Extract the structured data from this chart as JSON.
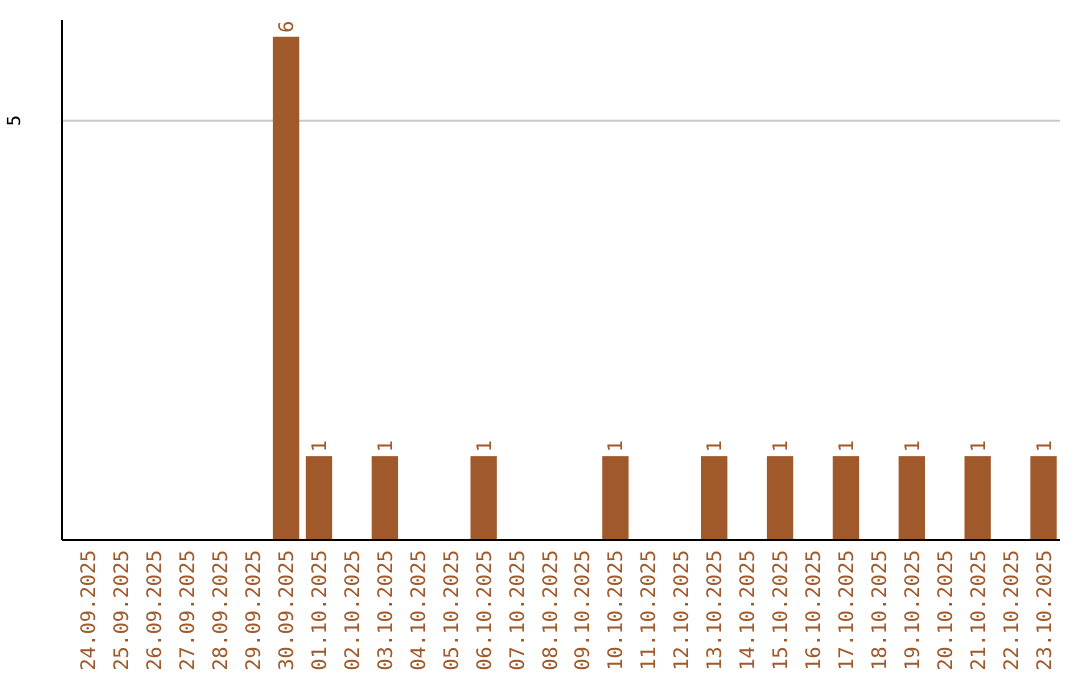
{
  "chart_data": {
    "type": "bar",
    "categories": [
      "24.09.2025",
      "25.09.2025",
      "26.09.2025",
      "27.09.2025",
      "28.09.2025",
      "29.09.2025",
      "30.09.2025",
      "01.10.2025",
      "02.10.2025",
      "03.10.2025",
      "04.10.2025",
      "05.10.2025",
      "06.10.2025",
      "07.10.2025",
      "08.10.2025",
      "09.10.2025",
      "10.10.2025",
      "11.10.2025",
      "12.10.2025",
      "13.10.2025",
      "14.10.2025",
      "15.10.2025",
      "16.10.2025",
      "17.10.2025",
      "18.10.2025",
      "19.10.2025",
      "20.10.2025",
      "21.10.2025",
      "22.10.2025",
      "23.10.2025"
    ],
    "values": [
      0,
      0,
      0,
      0,
      0,
      0,
      6,
      1,
      0,
      1,
      0,
      0,
      1,
      0,
      0,
      0,
      1,
      0,
      0,
      1,
      0,
      1,
      0,
      1,
      0,
      1,
      0,
      1,
      0,
      1
    ],
    "value_labels": [
      null,
      null,
      null,
      null,
      null,
      null,
      "6",
      "1",
      null,
      "1",
      null,
      null,
      "1",
      null,
      null,
      null,
      "1",
      null,
      null,
      "1",
      null,
      "1",
      null,
      "1",
      null,
      "1",
      null,
      "1",
      null,
      "1"
    ],
    "color": "#a0592a",
    "ylim": [
      0,
      6.2
    ],
    "yticks": [
      5
    ],
    "grid": "y"
  }
}
